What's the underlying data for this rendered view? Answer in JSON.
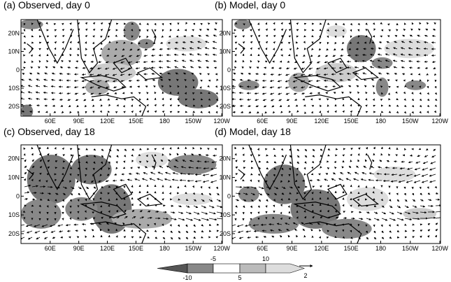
{
  "panels": [
    {
      "title": "(a) Observed, day 0"
    },
    {
      "title": "(b) Model, day 0"
    },
    {
      "title": "(c) Observed, day 18"
    },
    {
      "title": "(d) Model, day 18"
    }
  ],
  "longitude_labels": [
    "60E",
    "90E",
    "120E",
    "150E",
    "180",
    "150W",
    "120W"
  ],
  "latitude_labels": [
    "20N",
    "10N",
    "0",
    "10S",
    "20S"
  ],
  "colorbar": {
    "ticks": [
      -10,
      -5,
      5,
      10
    ]
  },
  "vector_reference": "2"
}
